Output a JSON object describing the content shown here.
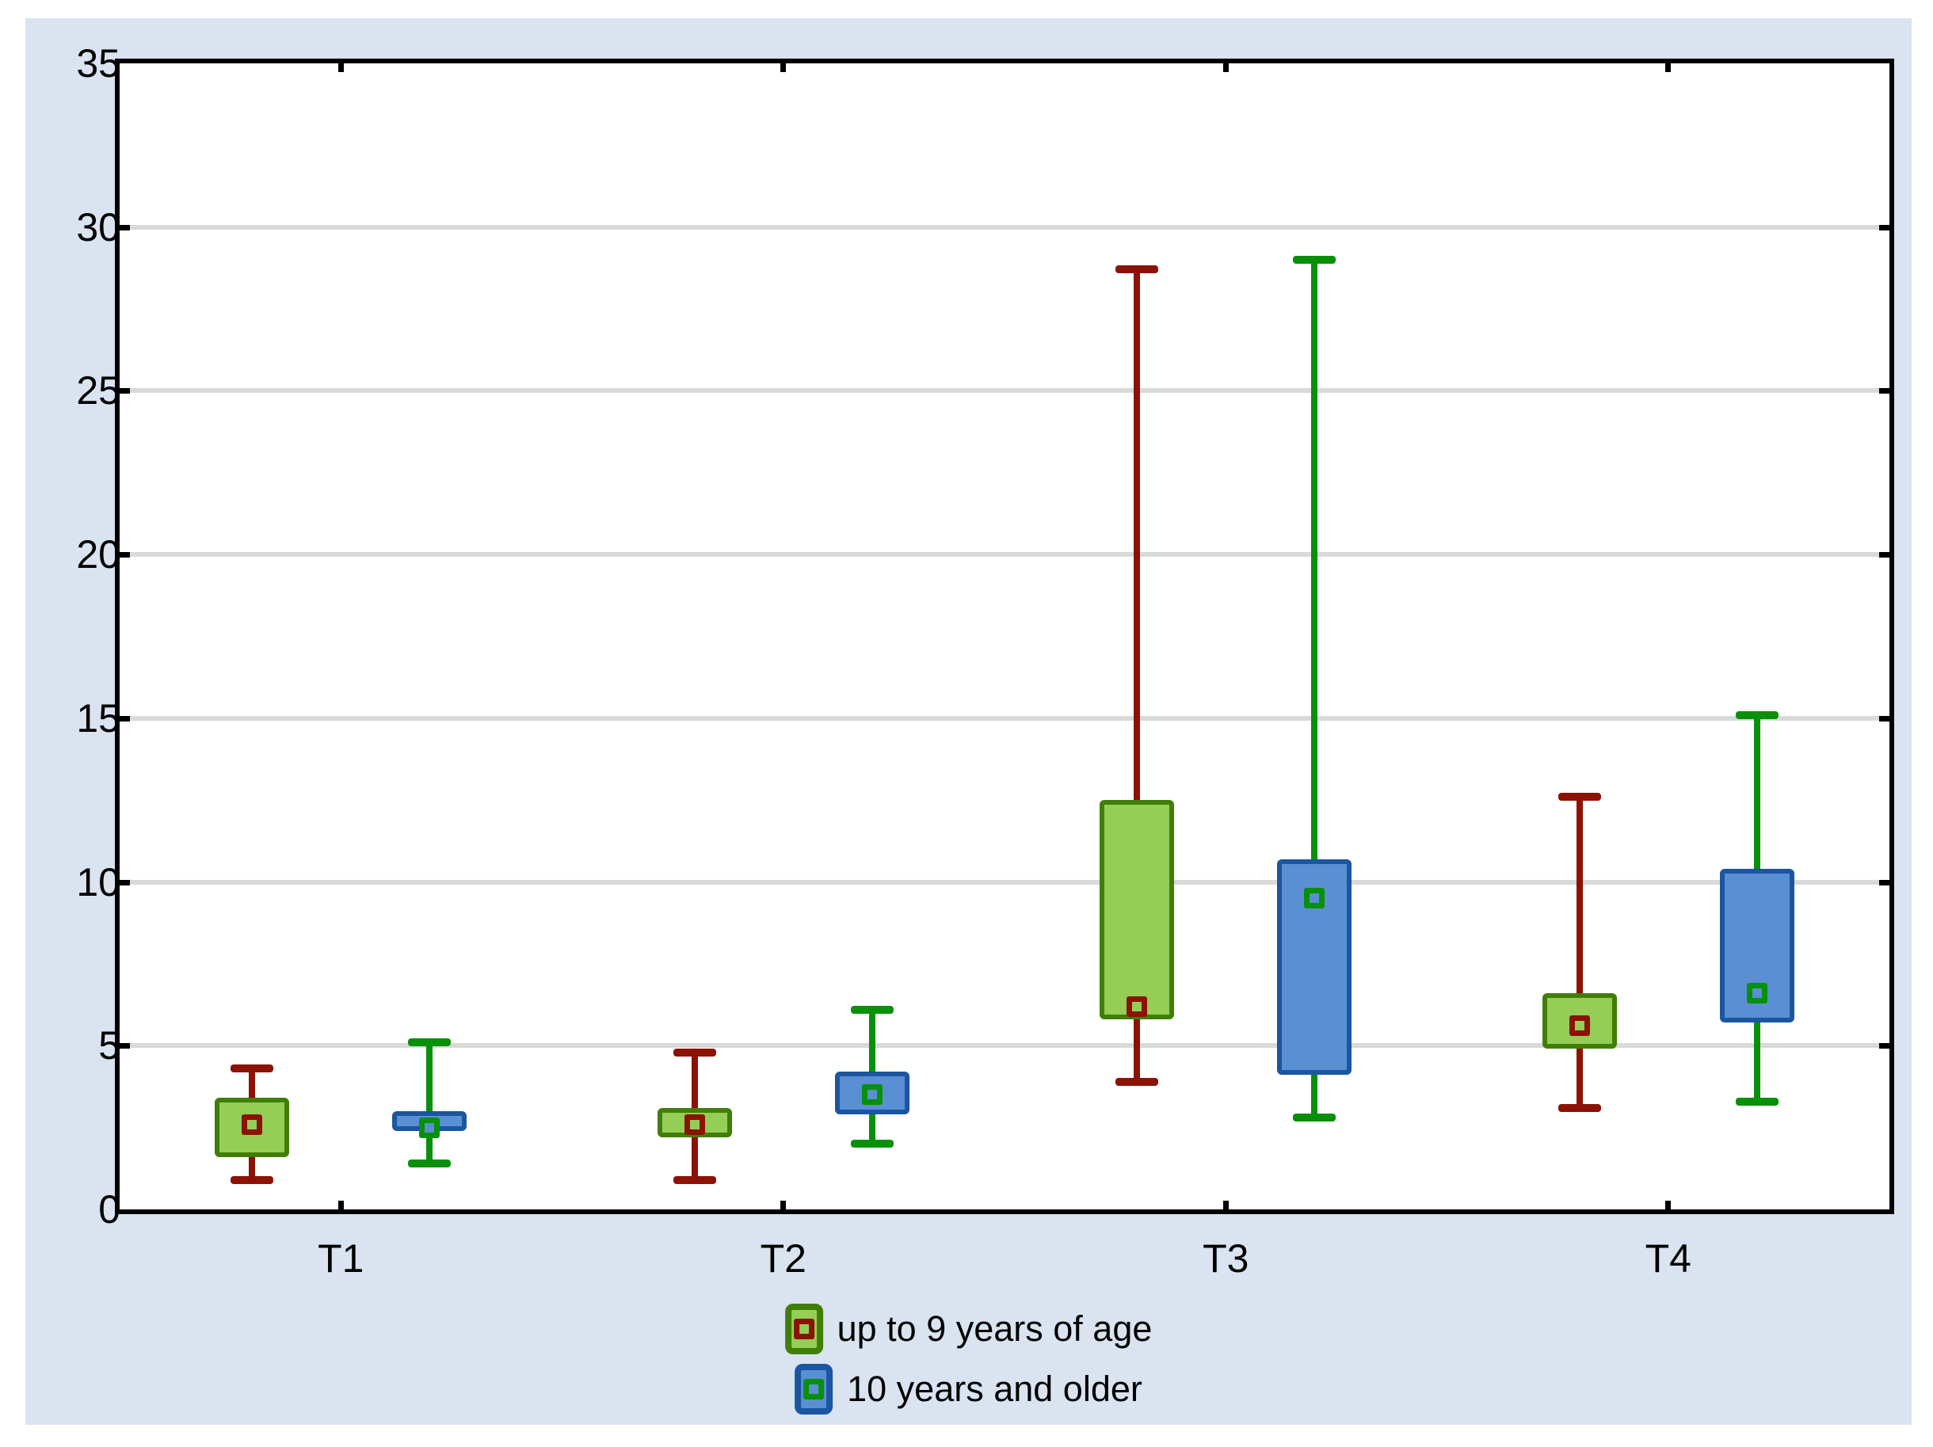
{
  "colors": {
    "canvas_bg": "#DAE3F0",
    "plot_bg": "#FFFFFF",
    "gridline": "#D9D9D9",
    "axis": "#000000",
    "text": "#000000"
  },
  "chart_data": {
    "type": "boxplot",
    "title": "",
    "xlabel": "",
    "ylabel": "",
    "categories": [
      "T1",
      "T2",
      "T3",
      "T4"
    ],
    "ylim": [
      0,
      35
    ],
    "yticks": [
      0,
      5,
      10,
      15,
      20,
      25,
      30,
      35
    ],
    "grid": "horizontal",
    "legend_position": "bottom-center",
    "series": [
      {
        "name": "up to 9 years of age",
        "box_fill": "#94CE57",
        "box_border": "#417E08",
        "whisker_color": "#8B1205",
        "boxes": [
          {
            "category": "T1",
            "whisker_low": 0.9,
            "q1": 1.6,
            "median": 2.6,
            "q3": 3.4,
            "whisker_high": 4.3
          },
          {
            "category": "T2",
            "whisker_low": 0.9,
            "q1": 2.2,
            "median": 2.6,
            "q3": 3.1,
            "whisker_high": 4.8
          },
          {
            "category": "T3",
            "whisker_low": 3.9,
            "q1": 5.8,
            "median": 6.2,
            "q3": 12.5,
            "whisker_high": 28.7
          },
          {
            "category": "T4",
            "whisker_low": 3.1,
            "q1": 4.9,
            "median": 5.6,
            "q3": 6.6,
            "whisker_high": 12.6
          }
        ]
      },
      {
        "name": "10 years and older",
        "box_fill": "#5A8FD3",
        "box_border": "#1C55A0",
        "whisker_color": "#089008",
        "boxes": [
          {
            "category": "T1",
            "whisker_low": 1.4,
            "q1": 2.4,
            "median": 2.5,
            "q3": 3.0,
            "whisker_high": 5.1
          },
          {
            "category": "T2",
            "whisker_low": 2.0,
            "q1": 2.9,
            "median": 3.5,
            "q3": 4.2,
            "whisker_high": 6.1
          },
          {
            "category": "T3",
            "whisker_low": 2.8,
            "q1": 4.1,
            "median": 9.5,
            "q3": 10.7,
            "whisker_high": 29.0
          },
          {
            "category": "T4",
            "whisker_low": 3.3,
            "q1": 5.7,
            "median": 6.6,
            "q3": 10.4,
            "whisker_high": 15.1
          }
        ]
      }
    ],
    "legend": [
      "up to 9 years of age",
      "10 years and older"
    ]
  }
}
